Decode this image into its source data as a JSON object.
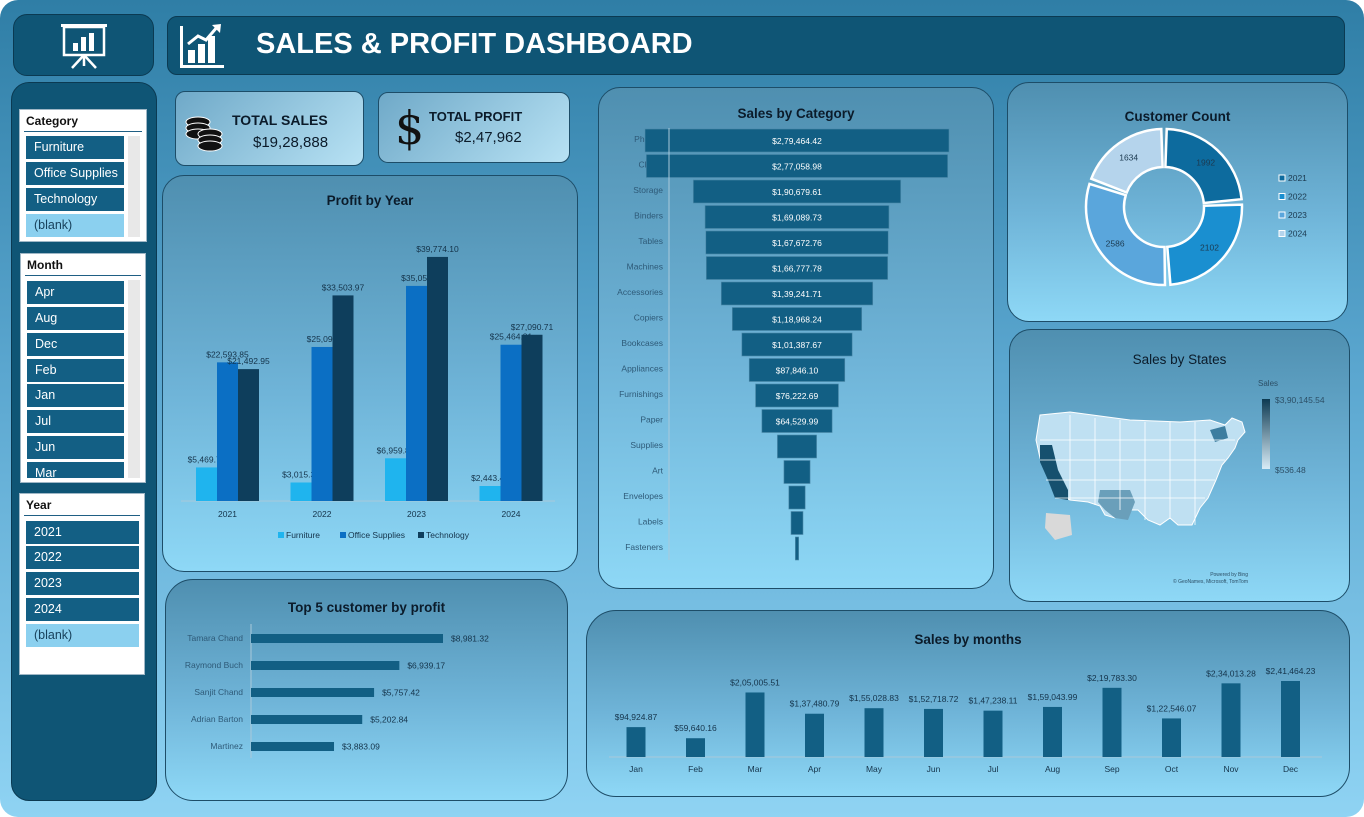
{
  "header": {
    "title": "SALES & PROFIT DASHBOARD"
  },
  "kpis": {
    "total_sales_label": "TOTAL SALES",
    "total_sales_value": "$19,28,888",
    "total_profit_label": "TOTAL PROFIT",
    "total_profit_value": "$2,47,962"
  },
  "slicers": {
    "category": {
      "title": "Category",
      "items": [
        "Furniture",
        "Office Supplies",
        "Technology",
        "(blank)"
      ]
    },
    "month": {
      "title": "Month",
      "items": [
        "Apr",
        "Aug",
        "Dec",
        "Feb",
        "Jan",
        "Jul",
        "Jun",
        "Mar"
      ]
    },
    "year": {
      "title": "Year",
      "items": [
        "2021",
        "2022",
        "2023",
        "2024",
        "(blank)"
      ]
    }
  },
  "icons": [
    "presentation-chart-icon",
    "bar-chart-icon",
    "coins-icon",
    "dollar-icon"
  ],
  "colors": {
    "furniture": "#1fb4ee",
    "office_supplies": "#0b6fc4",
    "technology": "#0e3e5c",
    "bar": "#125f84"
  },
  "chart_data": [
    {
      "type": "bar",
      "title": "Profit by Year",
      "categories": [
        "2021",
        "2022",
        "2023",
        "2024"
      ],
      "series": [
        {
          "name": "Furniture",
          "values": [
            5469.72,
            3015.37,
            6959.83,
            2443.4
          ],
          "labels": [
            "$5,469.72",
            "$3,015.37",
            "$6,959.83",
            "$2,443.40"
          ]
        },
        {
          "name": "Office Supplies",
          "values": [
            22593.85,
            25099.0,
            35052.0,
            25464.81
          ],
          "labels": [
            "$22,593.85",
            "$25,099",
            "$35,052",
            "$25,464.81"
          ]
        },
        {
          "name": "Technology",
          "values": [
            21492.95,
            33503.97,
            39774.1,
            27090.71
          ],
          "labels": [
            "$21,492.95",
            "$33,503.97",
            "$39,774.10",
            "$27,090.71"
          ]
        }
      ],
      "ylim": [
        0,
        44000
      ],
      "legend": "bottom"
    },
    {
      "type": "bar",
      "title": "Sales by Category",
      "orientation": "funnel",
      "categories": [
        "Phones",
        "Chairs",
        "Storage",
        "Binders",
        "Tables",
        "Machines",
        "Accessories",
        "Copiers",
        "Bookcases",
        "Appliances",
        "Furnishings",
        "Paper",
        "Supplies",
        "Art",
        "Envelopes",
        "Labels",
        "Fasteners"
      ],
      "values": [
        279464.42,
        277058.98,
        190679.61,
        169089.73,
        167672.76,
        166777.78,
        139241.71,
        118968.24,
        101387.67,
        87846.1,
        76222.69,
        64529.99,
        36000,
        24000,
        15000,
        11000,
        3000
      ],
      "labels": [
        "$2,79,464.42",
        "$2,77,058.98",
        "$1,90,679.61",
        "$1,69,089.73",
        "$1,67,672.76",
        "$1,66,777.78",
        "$1,39,241.71",
        "$1,18,968.24",
        "$1,01,387.67",
        "$87,846.10",
        "$76,222.69",
        "$64,529.99",
        "",
        "",
        "",
        "",
        ""
      ]
    },
    {
      "type": "pie",
      "title": "Customer Count",
      "categories": [
        "2021",
        "2022",
        "2023",
        "2024"
      ],
      "values": [
        1992,
        2102,
        2586,
        1634
      ],
      "labels": [
        "1992",
        "2102",
        "2586",
        "1634"
      ],
      "colors": [
        "#0d6b9e",
        "#1a8fd0",
        "#5aa6dc",
        "#b5d4ec"
      ],
      "legend": "right"
    },
    {
      "type": "bar",
      "title": "Top 5 customer by profit",
      "orientation": "horizontal",
      "categories": [
        "Tamara Chand",
        "Raymond Buch",
        "Sanjit Chand",
        "Adrian Barton",
        "Martinez"
      ],
      "values": [
        8981.32,
        6939.17,
        5757.42,
        5202.84,
        3883.09
      ],
      "labels": [
        "$8,981.32",
        "$6,939.17",
        "$5,757.42",
        "$5,202.84",
        "$3,883.09"
      ]
    },
    {
      "type": "bar",
      "title": "Sales by months",
      "categories": [
        "Jan",
        "Feb",
        "Mar",
        "Apr",
        "May",
        "Jun",
        "Jul",
        "Aug",
        "Sep",
        "Oct",
        "Nov",
        "Dec"
      ],
      "values": [
        94924.87,
        59640.16,
        205005.51,
        137480.79,
        155028.83,
        152718.72,
        147238.11,
        159043.99,
        219783.3,
        122546.07,
        234013.28,
        241464.23
      ],
      "labels": [
        "$94,924.87",
        "$59,640.16",
        "$2,05,005.51",
        "$1,37,480.79",
        "$1,55,028.83",
        "$1,52,718.72",
        "$1,47,238.11",
        "$1,59,043.99",
        "$2,19,783.30",
        "$1,22,546.07",
        "$2,34,013.28",
        "$2,41,464.23"
      ]
    }
  ],
  "map": {
    "title": "Sales by States",
    "legend_title": "Sales",
    "legend_max": "$3,90,145.54",
    "legend_min": "$536.48",
    "credit_1": "Powered by Bing",
    "credit_2": "© GeoNames, Microsoft, TomTom"
  }
}
